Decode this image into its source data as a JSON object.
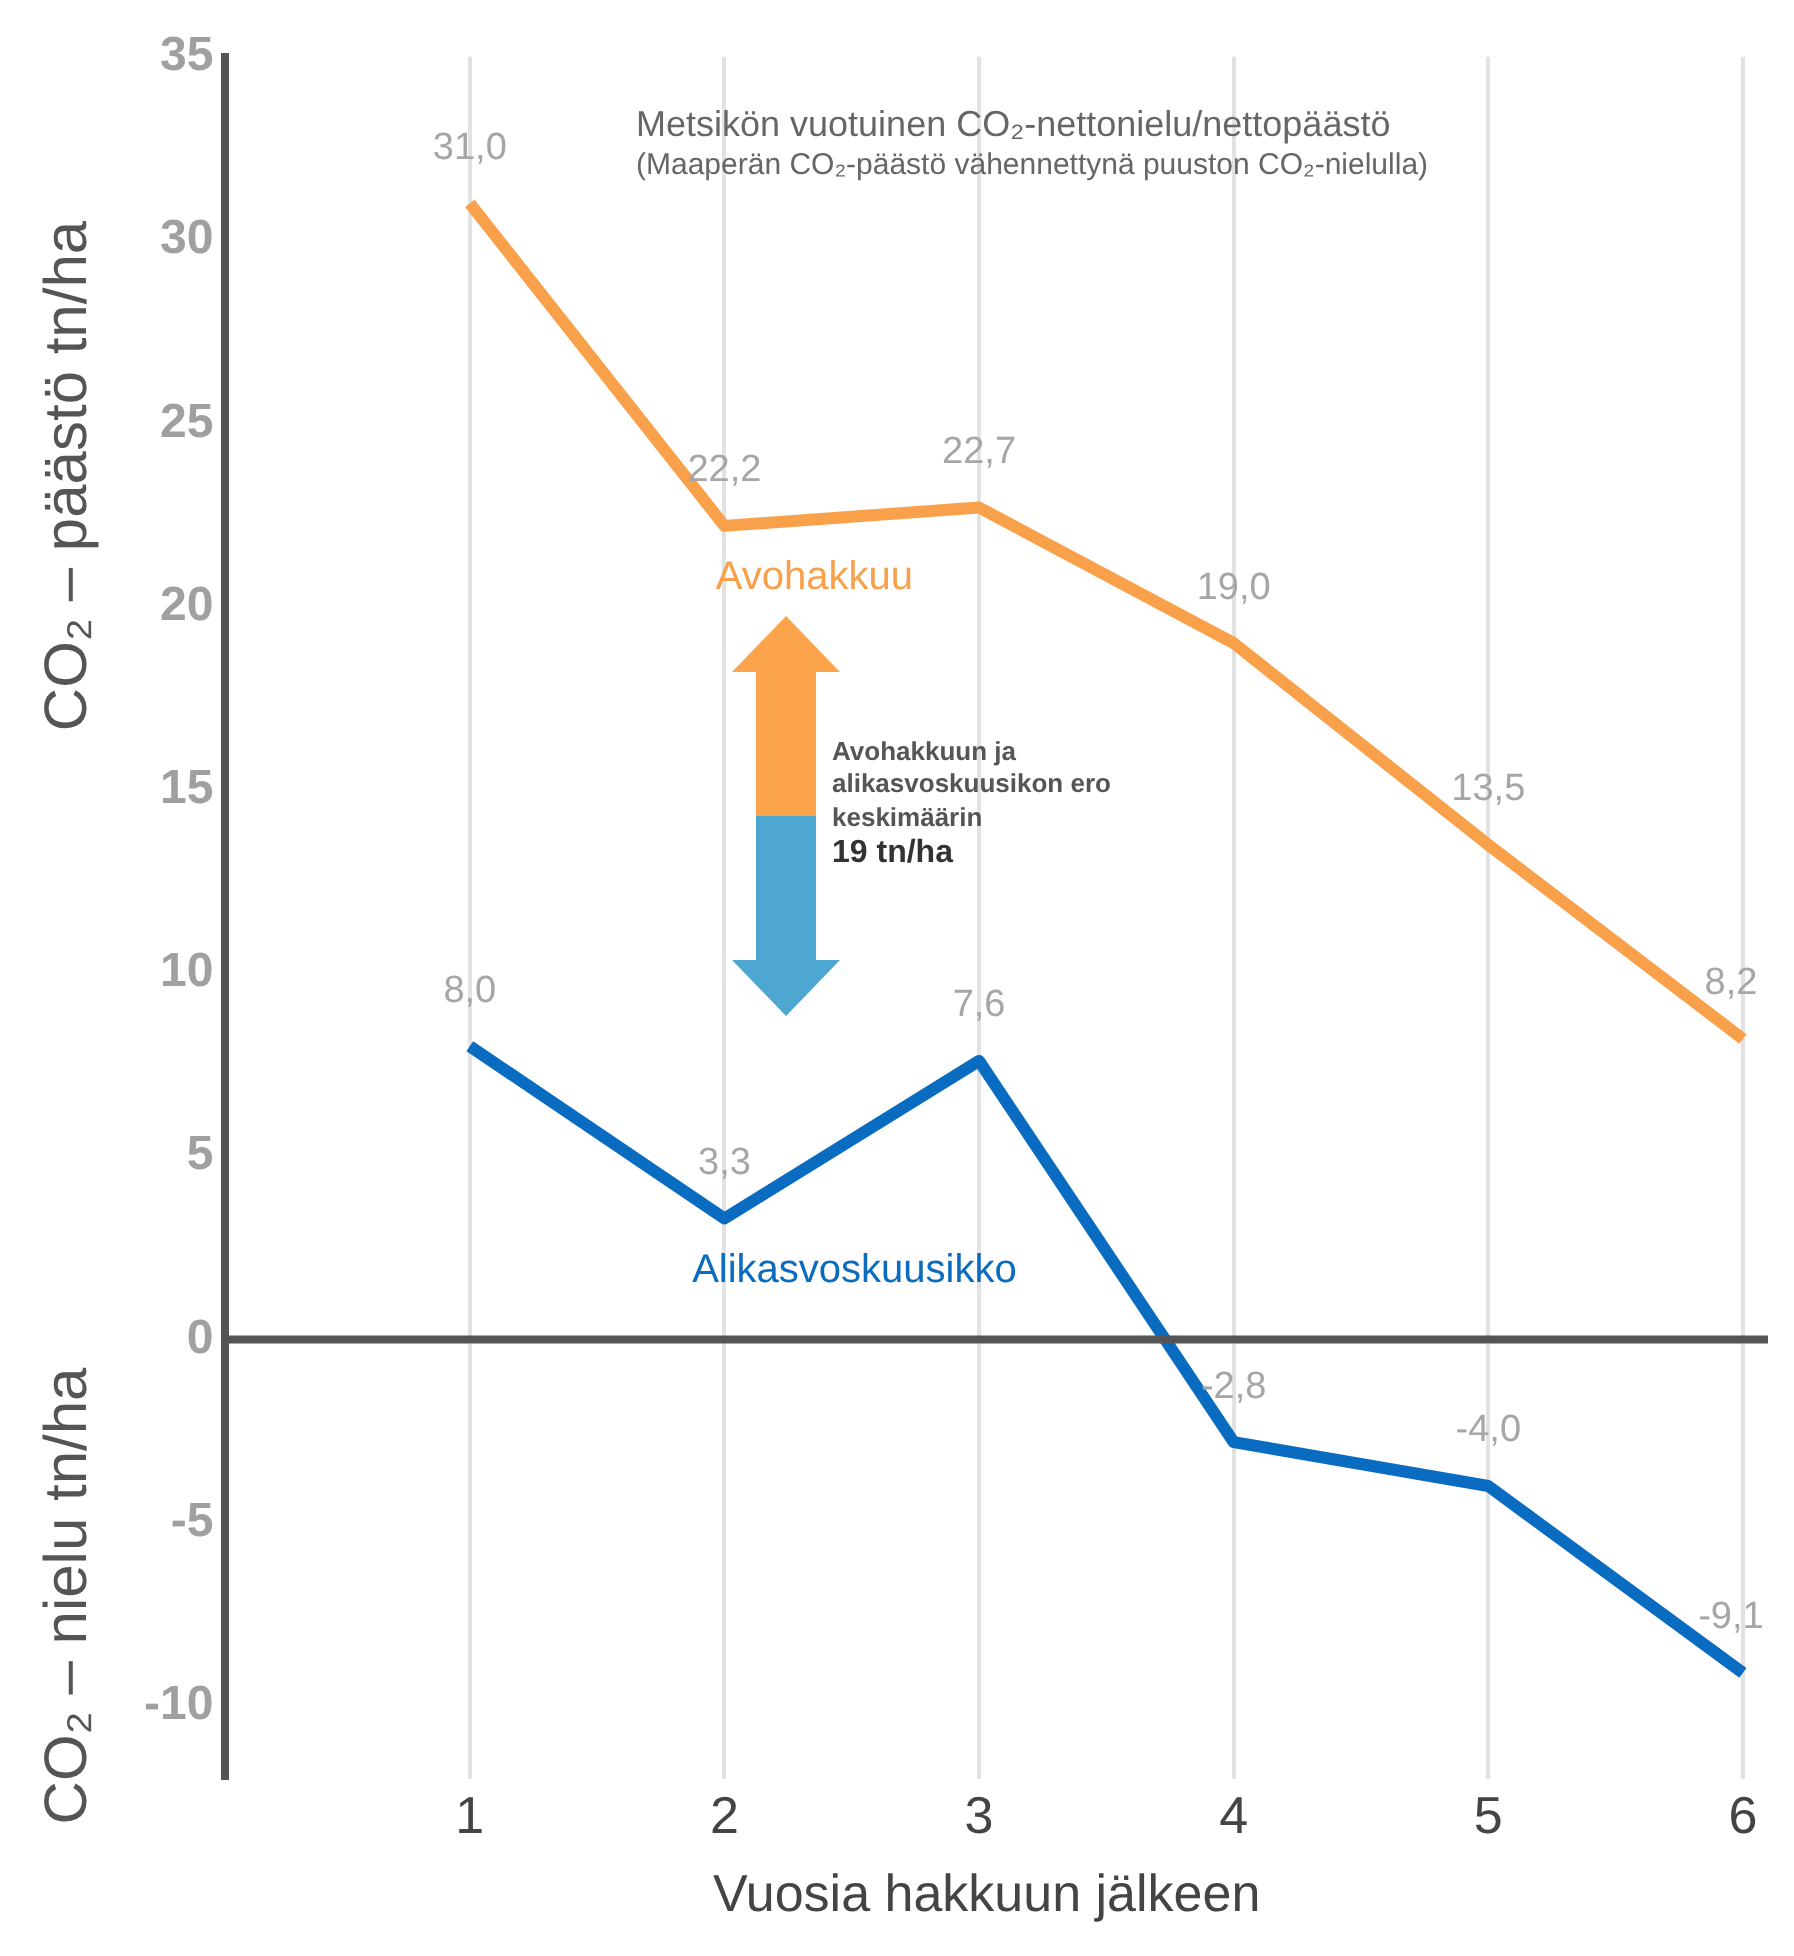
{
  "chart_data": {
    "type": "line",
    "title": "Metsikön vuotuinen CO₂-nettonielu/nettopäästö",
    "subtitle": "(Maaperän CO₂-päästö vähennettynä puuston CO₂-nielulla)",
    "xlabel": "Vuosia hakkuun jälkeen",
    "ylabel": "CO₂ – päästö tn/ha",
    "annotations": [
      "CO₂ – nielu tn/ha",
      "Avohakkuun ja alikasvoskuusikon ero keskimäärin $^{}$19 tn/ha"
    ],
    "categories": [
      "1",
      "2",
      "3",
      "4",
      "5",
      "6"
    ],
    "series": [
      {
        "name": "Avohakkuu",
        "color": "#f9a04a",
        "values": [
          31.0,
          22.2,
          22.7,
          19.0,
          13.5,
          8.2
        ],
        "value_labels": [
          "31,0",
          "22,2",
          "22,7",
          "19,0",
          "13,5",
          "8,2"
        ]
      },
      {
        "name": "Alikasvoskuusikko",
        "color": "#0a6cc0",
        "values": [
          8.0,
          3.3,
          7.6,
          -2.8,
          -4.0,
          -9.1
        ],
        "value_labels": [
          "8,0",
          "3,3",
          "7,6",
          "-2,8",
          "-4,0",
          "-9,1"
        ]
      }
    ],
    "ylim": [
      -12,
      35
    ],
    "yticks": [
      -10,
      -5,
      0,
      5,
      10,
      15,
      20,
      25,
      30,
      35
    ],
    "ref_lines": [
      {
        "axis": "y",
        "value": 0,
        "color": "#555555"
      }
    ],
    "grid": "x",
    "legend": false,
    "marker": "none",
    "line_style": "solid"
  }
}
